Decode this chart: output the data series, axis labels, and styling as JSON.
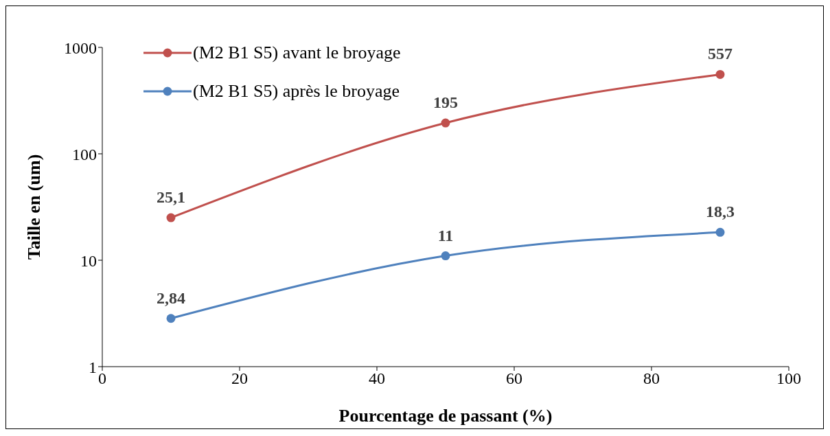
{
  "chart_data": {
    "type": "line",
    "xlabel": "Pourcentage de passant (%)",
    "ylabel": "Taille en (um)",
    "x": [
      10,
      50,
      90
    ],
    "series": [
      {
        "name": "(M2 B1 S5) avant le broyage",
        "color": "#c0504d",
        "values": [
          25.1,
          195,
          557
        ],
        "value_labels": [
          "25,1",
          "195",
          "557"
        ]
      },
      {
        "name": "(M2 B1 S5) après le broyage",
        "color": "#4f81bd",
        "values": [
          2.84,
          11,
          18.3
        ],
        "value_labels": [
          "2,84",
          "11",
          "18,3"
        ]
      }
    ],
    "xlim": [
      0,
      100
    ],
    "xticks": [
      0,
      20,
      40,
      60,
      80,
      100
    ],
    "ylim": [
      1,
      1000
    ],
    "yticks": [
      1,
      10,
      100,
      1000
    ],
    "log": true,
    "grid": false,
    "legend": "top left",
    "marker": "circle",
    "line_style": "solid"
  }
}
